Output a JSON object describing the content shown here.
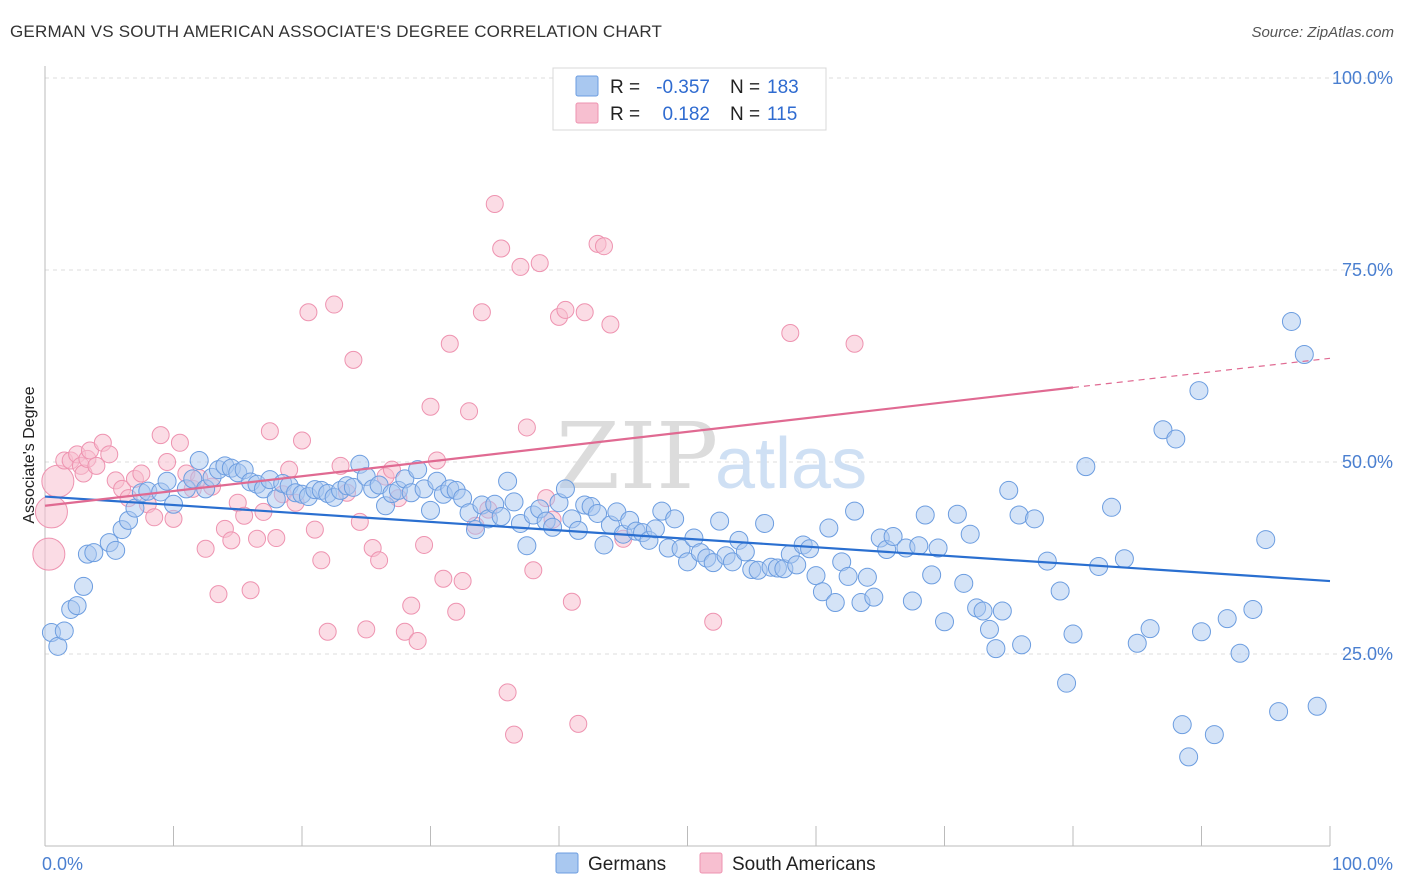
{
  "title": "GERMAN VS SOUTH AMERICAN ASSOCIATE'S DEGREE CORRELATION CHART",
  "source": "Source: ZipAtlas.com",
  "watermark": {
    "zip": "ZIP",
    "atlas": "atlas"
  },
  "colors": {
    "blue_fill": "#a9c8f0",
    "blue_stroke": "#6c9de0",
    "blue_line": "#2a6fd0",
    "pink_fill": "#f7bfd0",
    "pink_stroke": "#ee93b0",
    "pink_line": "#e06a92",
    "grid": "#dddddd",
    "tick_text": "#4a7fd0"
  },
  "legend_top": {
    "rows": [
      {
        "r_label": "R =",
        "r_value": "-0.357",
        "n_label": "N =",
        "n_value": "183",
        "color": "#a9c8f0"
      },
      {
        "r_label": "R =",
        "r_value": "0.182",
        "n_label": "N =",
        "n_value": "115",
        "color": "#f7bfd0"
      }
    ]
  },
  "legend_bottom": [
    "Germans",
    "South Americans"
  ],
  "chart_data": {
    "type": "scatter",
    "title": "GERMAN VS SOUTH AMERICAN ASSOCIATE'S DEGREE CORRELATION CHART",
    "xlabel": "",
    "ylabel": "Associate's Degree",
    "xlim": [
      0,
      100
    ],
    "ylim": [
      0,
      105
    ],
    "x_tick_labels": [
      "0.0%",
      "100.0%"
    ],
    "y_tick_labels": [
      "25.0%",
      "50.0%",
      "75.0%",
      "100.0%"
    ],
    "y_ticks": [
      25,
      50,
      75,
      100
    ],
    "grid": true,
    "legend_position": "top-center",
    "series": [
      {
        "name": "Germans",
        "r": -0.357,
        "n": 183,
        "trend": {
          "x": [
            0,
            100
          ],
          "y": [
            45.5,
            34.5
          ]
        },
        "points": [
          [
            0.5,
            27.8
          ],
          [
            1,
            26
          ],
          [
            1.5,
            28
          ],
          [
            2,
            30.8
          ],
          [
            2.5,
            31.3
          ],
          [
            3,
            33.8
          ],
          [
            3.3,
            38
          ],
          [
            3.8,
            38.2
          ],
          [
            5,
            39.5
          ],
          [
            5.5,
            38.5
          ],
          [
            6,
            41.2
          ],
          [
            6.5,
            42.4
          ],
          [
            7,
            44
          ],
          [
            7.5,
            46
          ],
          [
            8,
            46.2
          ],
          [
            9,
            46.1
          ],
          [
            9.5,
            47.5
          ],
          [
            10,
            44.5
          ],
          [
            11,
            46.5
          ],
          [
            11.5,
            47.8
          ],
          [
            12,
            50.2
          ],
          [
            12.5,
            46.5
          ],
          [
            13,
            48
          ],
          [
            13.5,
            49
          ],
          [
            14,
            49.5
          ],
          [
            14.5,
            49.2
          ],
          [
            15,
            48.6
          ],
          [
            15.5,
            49
          ],
          [
            16,
            47.4
          ],
          [
            16.5,
            47.1
          ],
          [
            17,
            46.5
          ],
          [
            17.5,
            47.7
          ],
          [
            18,
            45.2
          ],
          [
            18.5,
            47.2
          ],
          [
            19,
            46.9
          ],
          [
            19.5,
            46
          ],
          [
            20,
            45.8
          ],
          [
            20.5,
            45.5
          ],
          [
            21,
            46.4
          ],
          [
            21.5,
            46.3
          ],
          [
            22,
            45.9
          ],
          [
            22.5,
            45.4
          ],
          [
            23,
            46.3
          ],
          [
            23.5,
            46.9
          ],
          [
            24,
            46.7
          ],
          [
            24.5,
            49.7
          ],
          [
            25,
            48.1
          ],
          [
            25.5,
            46.5
          ],
          [
            26,
            47
          ],
          [
            26.5,
            44.3
          ],
          [
            27,
            45.9
          ],
          [
            27.5,
            46.3
          ],
          [
            28,
            47.8
          ],
          [
            28.5,
            46
          ],
          [
            29,
            49
          ],
          [
            29.5,
            46.5
          ],
          [
            30,
            43.7
          ],
          [
            30.5,
            47.5
          ],
          [
            31,
            45.8
          ],
          [
            31.5,
            46.5
          ],
          [
            32,
            46.3
          ],
          [
            32.5,
            45.3
          ],
          [
            33,
            43.4
          ],
          [
            33.5,
            41.2
          ],
          [
            34,
            44.4
          ],
          [
            34.5,
            42.6
          ],
          [
            35,
            44.5
          ],
          [
            35.5,
            42.9
          ],
          [
            36,
            47.5
          ],
          [
            36.5,
            44.8
          ],
          [
            37,
            42
          ],
          [
            37.5,
            39.1
          ],
          [
            38,
            43.1
          ],
          [
            38.5,
            43.9
          ],
          [
            39,
            42.3
          ],
          [
            39.5,
            41.5
          ],
          [
            40,
            44.7
          ],
          [
            40.5,
            46.5
          ],
          [
            41,
            42.6
          ],
          [
            41.5,
            41.1
          ],
          [
            42,
            44.4
          ],
          [
            42.5,
            44.2
          ],
          [
            43,
            43.3
          ],
          [
            43.5,
            39.2
          ],
          [
            44,
            41.8
          ],
          [
            44.5,
            43.5
          ],
          [
            45,
            40.6
          ],
          [
            45.5,
            42.4
          ],
          [
            46,
            41
          ],
          [
            46.5,
            40.8
          ],
          [
            47,
            39.8
          ],
          [
            47.5,
            41.3
          ],
          [
            48,
            43.6
          ],
          [
            48.5,
            38.8
          ],
          [
            49,
            42.6
          ],
          [
            49.5,
            38.7
          ],
          [
            50,
            37
          ],
          [
            50.5,
            40.1
          ],
          [
            51,
            38.2
          ],
          [
            51.5,
            37.5
          ],
          [
            52,
            36.9
          ],
          [
            52.5,
            42.3
          ],
          [
            53,
            37.8
          ],
          [
            53.5,
            37
          ],
          [
            54,
            39.8
          ],
          [
            54.5,
            38.3
          ],
          [
            55,
            36
          ],
          [
            55.5,
            35.9
          ],
          [
            56,
            42
          ],
          [
            56.5,
            36.3
          ],
          [
            57,
            36.2
          ],
          [
            57.5,
            36.1
          ],
          [
            58,
            38
          ],
          [
            58.5,
            36.6
          ],
          [
            59,
            39.2
          ],
          [
            59.5,
            38.7
          ],
          [
            60,
            35.2
          ],
          [
            60.5,
            33.1
          ],
          [
            61,
            41.4
          ],
          [
            61.5,
            31.7
          ],
          [
            62,
            37
          ],
          [
            62.5,
            35.1
          ],
          [
            63,
            43.6
          ],
          [
            63.5,
            31.7
          ],
          [
            64,
            35
          ],
          [
            64.5,
            32.4
          ],
          [
            65,
            40.1
          ],
          [
            65.5,
            38.6
          ],
          [
            66,
            40.3
          ],
          [
            67,
            38.8
          ],
          [
            67.5,
            31.9
          ],
          [
            68,
            39.1
          ],
          [
            68.5,
            43.1
          ],
          [
            69,
            35.3
          ],
          [
            69.5,
            38.8
          ],
          [
            70,
            29.2
          ],
          [
            71,
            43.2
          ],
          [
            71.5,
            34.2
          ],
          [
            72,
            40.6
          ],
          [
            72.5,
            31
          ],
          [
            73,
            30.6
          ],
          [
            73.5,
            28.2
          ],
          [
            74,
            25.7
          ],
          [
            74.5,
            30.6
          ],
          [
            75,
            46.3
          ],
          [
            75.8,
            43.1
          ],
          [
            76,
            26.2
          ],
          [
            77,
            42.6
          ],
          [
            78,
            37.1
          ],
          [
            79,
            33.2
          ],
          [
            79.5,
            21.2
          ],
          [
            80,
            27.6
          ],
          [
            81,
            49.4
          ],
          [
            82,
            36.4
          ],
          [
            83,
            44.1
          ],
          [
            84,
            37.4
          ],
          [
            85,
            26.4
          ],
          [
            86,
            28.3
          ],
          [
            87,
            54.2
          ],
          [
            88,
            53
          ],
          [
            88.5,
            15.8
          ],
          [
            89,
            11.6
          ],
          [
            89.8,
            59.3
          ],
          [
            90,
            27.9
          ],
          [
            91,
            14.5
          ],
          [
            92,
            29.6
          ],
          [
            93,
            25.1
          ],
          [
            94,
            30.8
          ],
          [
            95,
            39.9
          ],
          [
            96,
            17.5
          ],
          [
            97,
            68.3
          ],
          [
            98,
            64
          ],
          [
            99,
            18.2
          ]
        ]
      },
      {
        "name": "South Americans",
        "r": 0.182,
        "n": 115,
        "trend": {
          "x": [
            0,
            80
          ],
          "y": [
            44.3,
            59.7
          ]
        },
        "trend_dashed": {
          "x": [
            80,
            100
          ],
          "y": [
            59.7,
            63.5
          ]
        },
        "points": [
          [
            0.3,
            38
          ],
          [
            0.5,
            43.5
          ],
          [
            1,
            47.5
          ],
          [
            1.5,
            50.2
          ],
          [
            2,
            50.2
          ],
          [
            2.5,
            51
          ],
          [
            2.8,
            49.5
          ],
          [
            3,
            48.5
          ],
          [
            3.3,
            50.4
          ],
          [
            3.5,
            51.5
          ],
          [
            4,
            49.5
          ],
          [
            4.5,
            52.5
          ],
          [
            5,
            51
          ],
          [
            5.5,
            47.6
          ],
          [
            6,
            46.5
          ],
          [
            6.5,
            45.3
          ],
          [
            7,
            47.8
          ],
          [
            7.5,
            48.5
          ],
          [
            8,
            44.5
          ],
          [
            8.5,
            42.8
          ],
          [
            9,
            53.5
          ],
          [
            9.5,
            50
          ],
          [
            10,
            42.6
          ],
          [
            10.5,
            52.5
          ],
          [
            11,
            48.5
          ],
          [
            11.5,
            46.5
          ],
          [
            12,
            47.9
          ],
          [
            12.5,
            38.7
          ],
          [
            13,
            46.8
          ],
          [
            13.5,
            32.8
          ],
          [
            14,
            41.3
          ],
          [
            14.5,
            39.8
          ],
          [
            15,
            44.7
          ],
          [
            15.5,
            43
          ],
          [
            16,
            33.3
          ],
          [
            16.5,
            40
          ],
          [
            17,
            43.5
          ],
          [
            17.5,
            54
          ],
          [
            18,
            40.1
          ],
          [
            18.5,
            45.8
          ],
          [
            19,
            49
          ],
          [
            19.5,
            44.7
          ],
          [
            20,
            52.8
          ],
          [
            20.5,
            69.5
          ],
          [
            21,
            41.2
          ],
          [
            21.5,
            37.2
          ],
          [
            22,
            27.9
          ],
          [
            22.5,
            70.5
          ],
          [
            23,
            49.5
          ],
          [
            23.5,
            46
          ],
          [
            24,
            63.3
          ],
          [
            24.5,
            42.2
          ],
          [
            25,
            28.2
          ],
          [
            25.5,
            38.8
          ],
          [
            26,
            37.2
          ],
          [
            26.5,
            48.1
          ],
          [
            27,
            49
          ],
          [
            27.5,
            45.3
          ],
          [
            28,
            27.9
          ],
          [
            28.5,
            31.3
          ],
          [
            29,
            26.7
          ],
          [
            29.5,
            39.2
          ],
          [
            30,
            57.2
          ],
          [
            30.5,
            50.2
          ],
          [
            31,
            34.8
          ],
          [
            31.5,
            65.4
          ],
          [
            32,
            30.5
          ],
          [
            32.5,
            34.5
          ],
          [
            33,
            56.6
          ],
          [
            33.5,
            41.7
          ],
          [
            34,
            69.5
          ],
          [
            34.5,
            43.8
          ],
          [
            35,
            83.6
          ],
          [
            35.5,
            77.8
          ],
          [
            36,
            20
          ],
          [
            36.5,
            14.5
          ],
          [
            37,
            75.4
          ],
          [
            37.5,
            54.5
          ],
          [
            38,
            35.9
          ],
          [
            38.5,
            75.9
          ],
          [
            39,
            45.3
          ],
          [
            39.5,
            42.5
          ],
          [
            40,
            68.9
          ],
          [
            40.5,
            69.8
          ],
          [
            41,
            31.8
          ],
          [
            41.5,
            15.9
          ],
          [
            42,
            69.5
          ],
          [
            43,
            78.4
          ],
          [
            43.5,
            78.1
          ],
          [
            44,
            67.9
          ],
          [
            45,
            40
          ],
          [
            52,
            29.2
          ],
          [
            58,
            66.8
          ],
          [
            63,
            65.4
          ]
        ]
      }
    ]
  }
}
